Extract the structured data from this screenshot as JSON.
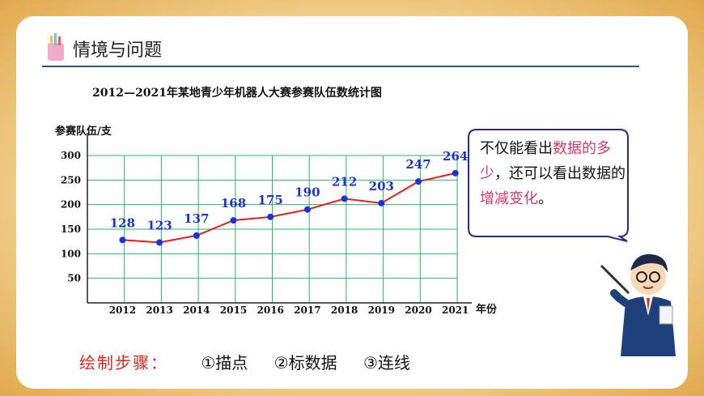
{
  "header": {
    "title": "情境与问题"
  },
  "chart_data": {
    "type": "line",
    "title": "2012—2021年某地青少年机器人大赛参赛队伍数统计图",
    "ylabel": "参赛队伍/支",
    "xlabel": "年份",
    "categories": [
      "2012",
      "2013",
      "2014",
      "2015",
      "2016",
      "2017",
      "2018",
      "2019",
      "2020",
      "2021"
    ],
    "values": [
      128,
      123,
      137,
      168,
      175,
      190,
      212,
      203,
      247,
      264
    ],
    "ylim": [
      0,
      300
    ],
    "yticks": [
      50,
      100,
      150,
      200,
      250,
      300
    ],
    "grid": true,
    "colors": {
      "line": "#e02020",
      "point": "#1a33d6",
      "label": "#1a33d6",
      "grid": "#2cb56a"
    }
  },
  "callout": {
    "parts": [
      {
        "text": "不仅能看出",
        "highlight": false
      },
      {
        "text": "数据的多少",
        "highlight": true
      },
      {
        "text": "，还可以看出数据的",
        "highlight": false
      },
      {
        "text": "增减变化",
        "highlight": true
      },
      {
        "text": "。",
        "highlight": false
      }
    ],
    "highlight_color": "#d43b66"
  },
  "steps": {
    "label": "绘制步骤：",
    "items": [
      "①描点",
      "②标数据",
      "③连线"
    ]
  }
}
